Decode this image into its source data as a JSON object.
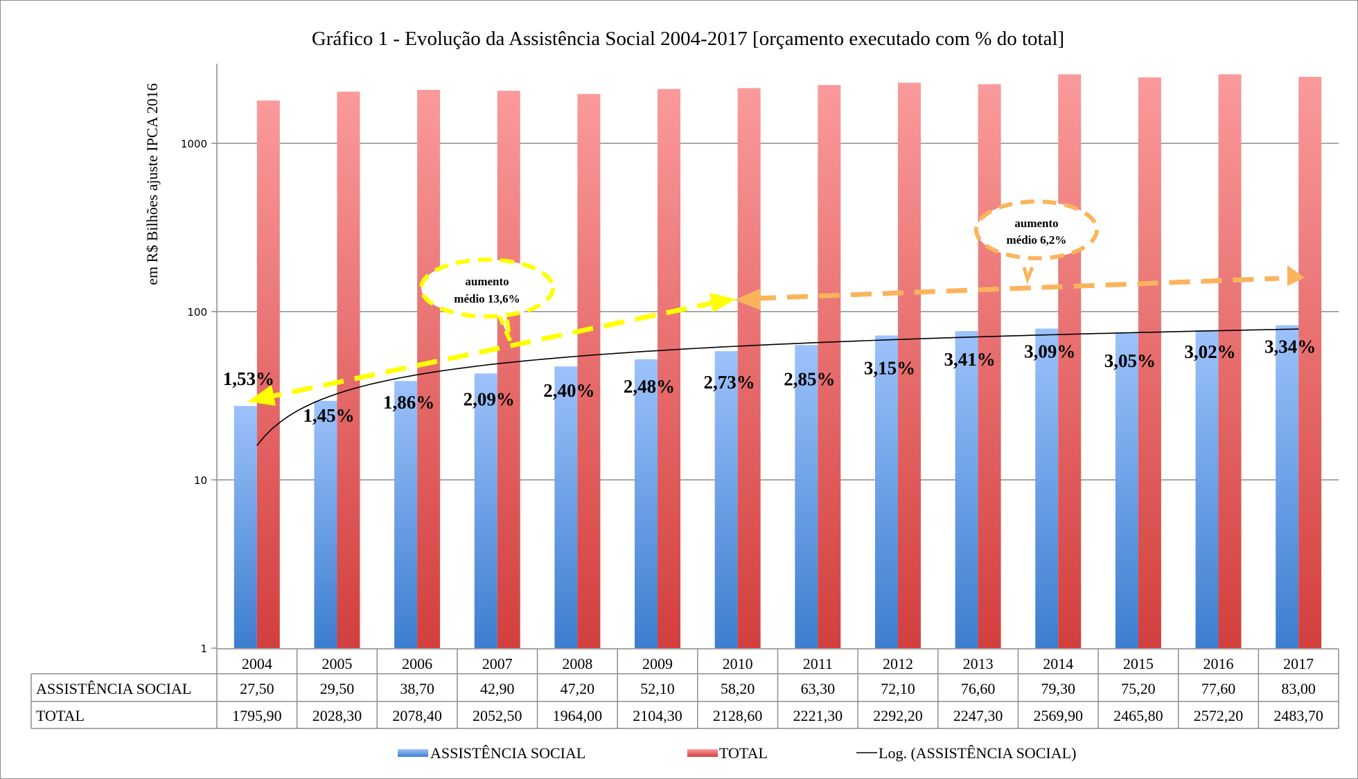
{
  "chart_data": {
    "type": "bar",
    "title": "Gráfico 1 - Evolução da Assistência Social 2004-2017 [orçamento executado com % do total]",
    "xlabel": "",
    "ylabel": "em R$ Bilhões ajuste IPCA 2016",
    "yscale": "log",
    "ylim": [
      1,
      3000
    ],
    "yticks": [
      1,
      10,
      100,
      1000
    ],
    "ytick_labels": [
      "1",
      "10",
      "100",
      "1000"
    ],
    "grid": true,
    "categories": [
      "2004",
      "2005",
      "2006",
      "2007",
      "2008",
      "2009",
      "2010",
      "2011",
      "2012",
      "2013",
      "2014",
      "2015",
      "2016",
      "2017"
    ],
    "series": [
      {
        "name": "ASSISTÊNCIA SOCIAL",
        "color_top": "#9cc2fb",
        "color_bottom": "#3c7dcf",
        "values": [
          27.5,
          29.5,
          38.7,
          42.9,
          47.2,
          52.1,
          58.2,
          63.3,
          72.1,
          76.6,
          79.3,
          75.2,
          77.6,
          83.0
        ],
        "table_values": [
          "27,50",
          "29,50",
          "38,70",
          "42,90",
          "47,20",
          "52,10",
          "58,20",
          "63,30",
          "72,10",
          "76,60",
          "79,30",
          "75,20",
          "77,60",
          "83,00"
        ]
      },
      {
        "name": "TOTAL",
        "color_top": "#fa9a9a",
        "color_bottom": "#d23f3e",
        "values": [
          1795.9,
          2028.3,
          2078.4,
          2052.5,
          1964.0,
          2104.3,
          2128.6,
          2221.3,
          2292.2,
          2247.3,
          2569.9,
          2465.8,
          2572.2,
          2483.7
        ],
        "table_values": [
          "1795,90",
          "2028,30",
          "2078,40",
          "2052,50",
          "1964,00",
          "2104,30",
          "2128,60",
          "2221,30",
          "2292,20",
          "2247,30",
          "2569,90",
          "2465,80",
          "2572,20",
          "2483,70"
        ]
      }
    ],
    "trendline": {
      "name": "Log. (ASSISTÊNCIA SOCIAL)",
      "type": "logarithmic",
      "of_series": "ASSISTÊNCIA SOCIAL",
      "color": "#000000"
    },
    "percent_labels": [
      "1,53%",
      "1,45%",
      "1,86%",
      "2,09%",
      "2,40%",
      "2,48%",
      "2,73%",
      "2,85%",
      "3,15%",
      "3,41%",
      "3,09%",
      "3,05%",
      "3,02%",
      "3,34%"
    ],
    "annotations": [
      {
        "line1": "aumento",
        "line2": "médio 13,6%",
        "from_category": "2004",
        "to_category": "2010",
        "color": "#ffff00"
      },
      {
        "line1": "aumento",
        "line2": "médio 6,2%",
        "from_category": "2010",
        "to_category": "2017",
        "color": "#fbb45c"
      }
    ],
    "legend": {
      "position": "bottom",
      "entries": [
        "ASSISTÊNCIA SOCIAL",
        "TOTAL",
        "Log. (ASSISTÊNCIA SOCIAL)"
      ]
    },
    "data_table": {
      "row_labels": [
        "ASSISTÊNCIA SOCIAL",
        "TOTAL"
      ]
    }
  }
}
